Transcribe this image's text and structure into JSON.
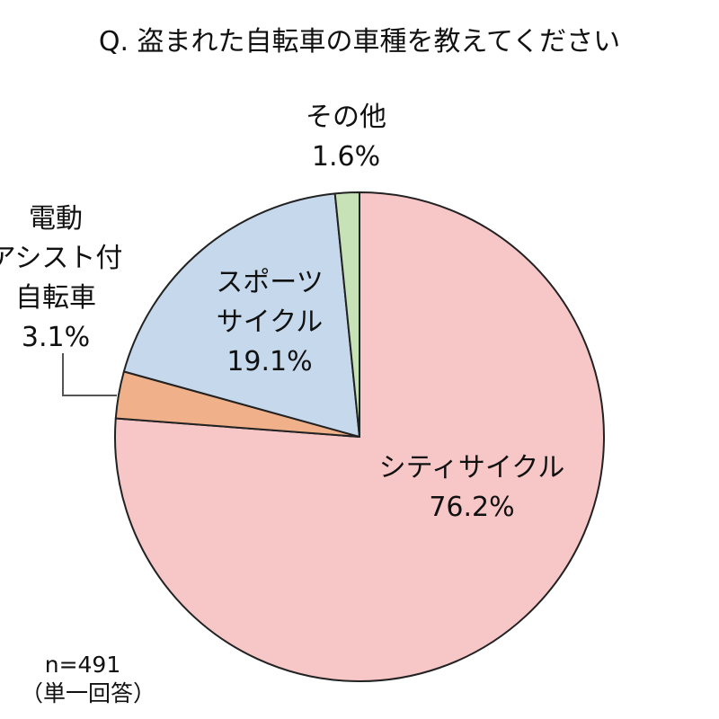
{
  "chart_data": {
    "type": "pie",
    "title": "Q. 盗まれた自転車の車種を教えてください",
    "start": "12 o'clock",
    "direction": "clockwise",
    "slices": [
      {
        "key": "city",
        "label_lines": [
          "シティサイクル"
        ],
        "value": 76.2,
        "value_label": "76.2%",
        "color": "#f7c6c7"
      },
      {
        "key": "ebike",
        "label_lines": [
          "電動",
          "アシスト付",
          "自転車"
        ],
        "value": 3.1,
        "value_label": "3.1%",
        "color": "#f0b08a"
      },
      {
        "key": "sport",
        "label_lines": [
          "スポーツ",
          "サイクル"
        ],
        "value": 19.1,
        "value_label": "19.1%",
        "color": "#c5d8ec"
      },
      {
        "key": "other",
        "label_lines": [
          "その他"
        ],
        "value": 1.6,
        "value_label": "1.6%",
        "color": "#c6e2b6"
      }
    ],
    "note_lines": [
      "n=491",
      "（単一回答）"
    ]
  }
}
